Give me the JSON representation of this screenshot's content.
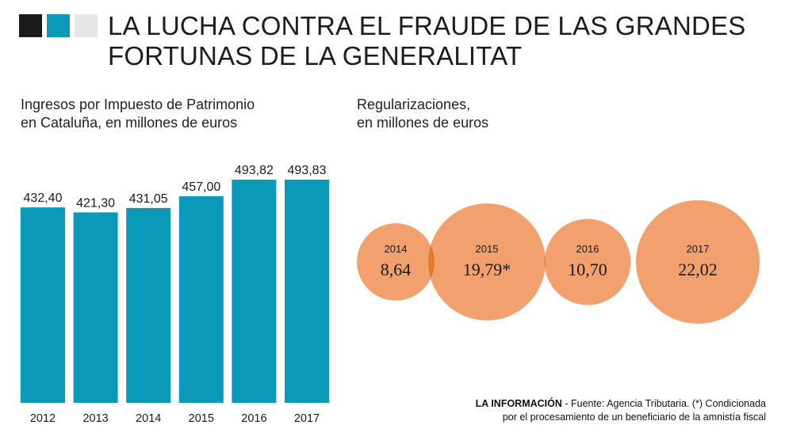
{
  "header": {
    "title_line1": "LA LUCHA CONTRA EL FRAUDE DE LAS GRANDES",
    "title_line2": "FORTUNAS DE LA GENERALITAT",
    "swatch_colors": [
      "#1b1b1b",
      "#0a99b8",
      "#e6e6e6"
    ]
  },
  "chart_data": [
    {
      "type": "bar",
      "title_line1": "Ingresos por Impuesto de Patrimonio",
      "title_line2": "en Cataluña, en millones de euros",
      "categories": [
        "2012",
        "2013",
        "2014",
        "2015",
        "2016",
        "2017"
      ],
      "values": [
        432.4,
        421.3,
        431.05,
        457.0,
        493.82,
        493.83
      ],
      "value_labels": [
        "432,40",
        "421,30",
        "431,05",
        "457,00",
        "493,82",
        "493,83"
      ],
      "color": "#0a99b8",
      "ylim": [
        0,
        500
      ]
    },
    {
      "type": "bubble",
      "title_line1": "Regularizaciones,",
      "title_line2": "en millones de euros",
      "categories": [
        "2014",
        "2015",
        "2016",
        "2017"
      ],
      "values": [
        8.64,
        19.79,
        10.7,
        22.02
      ],
      "value_labels": [
        "8,64",
        "19,79*",
        "10,70",
        "22,02"
      ],
      "color": "#f2a16e",
      "overlap_color": "#e8772e"
    }
  ],
  "footer": {
    "source_bold": "LA INFORMACIÓN",
    "source_text": " - Fuente: Agencia Tributaria. (*) Condicionada",
    "note_line2": "por el procesamiento de un beneficiario de la amnistía fiscal"
  }
}
